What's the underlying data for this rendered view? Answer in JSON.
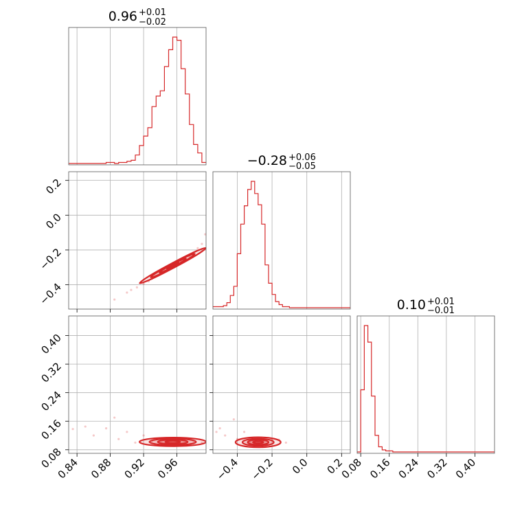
{
  "chart_data": {
    "type": "corner",
    "color": "#d62728",
    "parameters": [
      {
        "title": "0.96",
        "title_plus": "+0.01",
        "title_minus": "−0.02",
        "range": [
          0.83,
          0.995
        ],
        "ticks": [
          {
            "value": 0.84,
            "label": "0.84"
          },
          {
            "value": 0.88,
            "label": "0.88"
          },
          {
            "value": 0.92,
            "label": "0.92"
          },
          {
            "value": 0.96,
            "label": "0.96"
          }
        ],
        "hist_edges": [
          0.83,
          0.835,
          0.84,
          0.845,
          0.85,
          0.855,
          0.86,
          0.865,
          0.87,
          0.875,
          0.88,
          0.885,
          0.89,
          0.895,
          0.9,
          0.905,
          0.91,
          0.915,
          0.92,
          0.925,
          0.93,
          0.935,
          0.94,
          0.945,
          0.95,
          0.955,
          0.96,
          0.965,
          0.97,
          0.975,
          0.98,
          0.985,
          0.99,
          0.995
        ],
        "hist_counts": [
          0,
          0,
          0,
          0,
          0,
          0,
          0,
          0,
          0,
          1,
          1,
          0,
          1,
          1,
          2,
          3,
          8,
          17,
          26,
          34,
          54,
          64,
          69,
          92,
          108,
          120,
          117,
          90,
          66,
          37,
          18,
          10,
          1
        ]
      },
      {
        "title": "−0.28",
        "title_plus": "+0.06",
        "title_minus": "−0.05",
        "range": [
          -0.54,
          0.25
        ],
        "ticks": [
          {
            "value": -0.4,
            "label": "−0.4"
          },
          {
            "value": -0.2,
            "label": "−0.2"
          },
          {
            "value": 0.0,
            "label": "0.0"
          },
          {
            "value": 0.2,
            "label": "0.2"
          }
        ],
        "hist_edges": [
          -0.54,
          -0.52,
          -0.5,
          -0.48,
          -0.46,
          -0.44,
          -0.42,
          -0.4,
          -0.38,
          -0.36,
          -0.34,
          -0.32,
          -0.3,
          -0.28,
          -0.26,
          -0.24,
          -0.22,
          -0.2,
          -0.18,
          -0.16,
          -0.14,
          -0.12,
          -0.1,
          -0.08,
          -0.06,
          -0.04,
          -0.02,
          0.0,
          0.02,
          0.04,
          0.06,
          0.08,
          0.1,
          0.12,
          0.14,
          0.16,
          0.18,
          0.2,
          0.22,
          0.25
        ],
        "hist_counts": [
          1,
          1,
          1,
          2,
          5,
          12,
          21,
          53,
          82,
          100,
          116,
          124,
          112,
          101,
          82,
          42,
          24,
          13,
          6,
          3,
          1,
          1,
          0,
          0,
          0,
          0,
          0,
          0,
          0,
          0,
          0,
          0,
          0,
          0,
          0,
          0,
          0,
          0,
          0
        ]
      },
      {
        "title": "0.10",
        "title_plus": "+0.01",
        "title_minus": "−0.01",
        "range": [
          0.07,
          0.455
        ],
        "ticks": [
          {
            "value": 0.08,
            "label": "0.08"
          },
          {
            "value": 0.16,
            "label": "0.16"
          },
          {
            "value": 0.24,
            "label": "0.24"
          },
          {
            "value": 0.32,
            "label": "0.32"
          },
          {
            "value": 0.4,
            "label": "0.40"
          }
        ],
        "hist_edges": [
          0.07,
          0.08,
          0.09,
          0.1,
          0.11,
          0.12,
          0.13,
          0.14,
          0.15,
          0.16,
          0.17,
          0.18,
          0.19,
          0.2,
          0.21,
          0.22,
          0.23,
          0.24,
          0.25,
          0.26,
          0.27,
          0.28,
          0.29,
          0.3,
          0.31,
          0.32,
          0.33,
          0.34,
          0.35,
          0.36,
          0.37,
          0.38,
          0.39,
          0.4,
          0.41,
          0.42,
          0.43,
          0.44,
          0.455
        ],
        "hist_counts": [
          0,
          60,
          122,
          106,
          54,
          16,
          5,
          2,
          1,
          1,
          0,
          0,
          0,
          0,
          0,
          0,
          0,
          0,
          0,
          0,
          0,
          0,
          0,
          0,
          0,
          0,
          0,
          0,
          0,
          0,
          0,
          0,
          0,
          0,
          0,
          0,
          0,
          0
        ]
      }
    ],
    "joint_distributions": [
      {
        "x_param": 0,
        "y_param": 1,
        "points": [
          [
            0.885,
            -0.485
          ],
          [
            0.9,
            -0.445
          ],
          [
            0.905,
            -0.43
          ],
          [
            0.912,
            -0.415
          ],
          [
            0.92,
            -0.395
          ],
          [
            0.926,
            -0.38
          ],
          [
            0.93,
            -0.365
          ],
          [
            0.936,
            -0.35
          ],
          [
            0.94,
            -0.34
          ],
          [
            0.946,
            -0.32
          ],
          [
            0.95,
            -0.31
          ],
          [
            0.955,
            -0.295
          ],
          [
            0.96,
            -0.28
          ],
          [
            0.965,
            -0.265
          ],
          [
            0.97,
            -0.25
          ],
          [
            0.975,
            -0.235
          ],
          [
            0.98,
            -0.215
          ],
          [
            0.985,
            -0.19
          ],
          [
            0.99,
            -0.165
          ],
          [
            0.994,
            -0.11
          ]
        ]
      },
      {
        "x_param": 0,
        "y_param": 2,
        "points": [
          [
            0.835,
            0.138
          ],
          [
            0.85,
            0.145
          ],
          [
            0.86,
            0.12
          ],
          [
            0.875,
            0.14
          ],
          [
            0.885,
            0.17
          ],
          [
            0.89,
            0.11
          ],
          [
            0.9,
            0.13
          ],
          [
            0.91,
            0.1
          ],
          [
            0.92,
            0.12
          ],
          [
            0.93,
            0.105
          ],
          [
            0.94,
            0.095
          ],
          [
            0.95,
            0.1
          ],
          [
            0.96,
            0.102
          ],
          [
            0.97,
            0.098
          ],
          [
            0.98,
            0.105
          ],
          [
            0.99,
            0.1
          ]
        ]
      },
      {
        "x_param": 1,
        "y_param": 2,
        "points": [
          [
            -0.52,
            0.13
          ],
          [
            -0.5,
            0.14
          ],
          [
            -0.47,
            0.12
          ],
          [
            -0.42,
            0.165
          ],
          [
            -0.4,
            0.11
          ],
          [
            -0.36,
            0.13
          ],
          [
            -0.33,
            0.1
          ],
          [
            -0.3,
            0.095
          ],
          [
            -0.28,
            0.102
          ],
          [
            -0.25,
            0.105
          ],
          [
            -0.2,
            0.11
          ],
          [
            -0.16,
            0.108
          ],
          [
            -0.12,
            0.1
          ]
        ]
      }
    ]
  }
}
